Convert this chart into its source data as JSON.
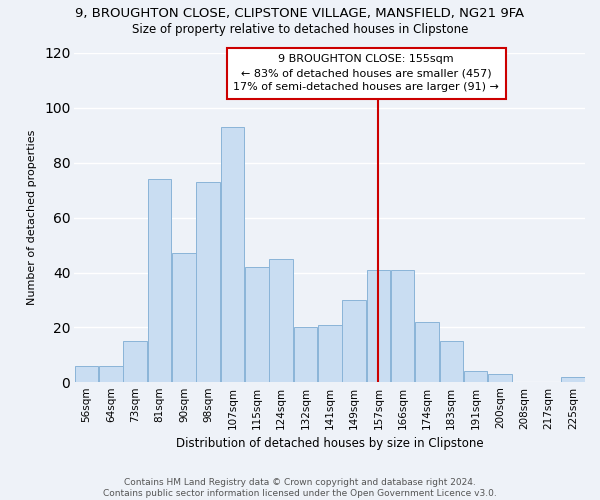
{
  "title": "9, BROUGHTON CLOSE, CLIPSTONE VILLAGE, MANSFIELD, NG21 9FA",
  "subtitle": "Size of property relative to detached houses in Clipstone",
  "xlabel": "Distribution of detached houses by size in Clipstone",
  "ylabel": "Number of detached properties",
  "bin_labels": [
    "56sqm",
    "64sqm",
    "73sqm",
    "81sqm",
    "90sqm",
    "98sqm",
    "107sqm",
    "115sqm",
    "124sqm",
    "132sqm",
    "141sqm",
    "149sqm",
    "157sqm",
    "166sqm",
    "174sqm",
    "183sqm",
    "191sqm",
    "200sqm",
    "208sqm",
    "217sqm",
    "225sqm"
  ],
  "bar_heights": [
    6,
    6,
    15,
    74,
    47,
    73,
    93,
    42,
    45,
    20,
    21,
    30,
    41,
    41,
    22,
    15,
    4,
    3,
    0,
    0,
    2
  ],
  "bar_color": "#c9ddf2",
  "bar_edge_color": "#8ab4d8",
  "reference_line_x": 12,
  "annotation_lines": [
    "9 BROUGHTON CLOSE: 155sqm",
    "← 83% of detached houses are smaller (457)",
    "17% of semi-detached houses are larger (91) →"
  ],
  "ylim": [
    0,
    120
  ],
  "yticks": [
    0,
    20,
    40,
    60,
    80,
    100,
    120
  ],
  "footer_text": "Contains HM Land Registry data © Crown copyright and database right 2024.\nContains public sector information licensed under the Open Government Licence v3.0.",
  "bg_color": "#eef2f8",
  "grid_color": "#ffffff",
  "ref_line_color": "#cc0000",
  "title_fontsize": 9.5,
  "subtitle_fontsize": 8.5,
  "xlabel_fontsize": 8.5,
  "ylabel_fontsize": 8.0,
  "tick_fontsize": 7.5,
  "footer_fontsize": 6.5,
  "annotation_fontsize": 8.0
}
